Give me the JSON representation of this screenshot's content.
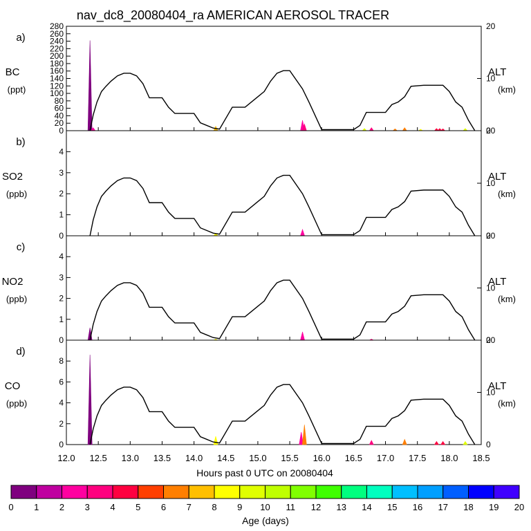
{
  "chart_data": {
    "type": "line",
    "title": "nav_dc8_20080404_ra AMERICAN AEROSOL TRACER",
    "xlabel": "Hours past 0 UTC on 20080404",
    "xlim": [
      12.0,
      18.5
    ],
    "x_ticks": [
      "12.0",
      "12.5",
      "13.0",
      "13.5",
      "14.0",
      "14.5",
      "15.0",
      "15.5",
      "16.0",
      "16.5",
      "17.0",
      "17.5",
      "18.0",
      "18.5"
    ],
    "altitude": {
      "label": "ALT",
      "unit": "(km)",
      "range": [
        0,
        20
      ],
      "ticks": [
        "0",
        "10",
        "20"
      ],
      "x": [
        12.37,
        12.42,
        12.48,
        12.55,
        12.62,
        12.7,
        12.8,
        12.9,
        13.0,
        13.1,
        13.2,
        13.3,
        13.5,
        13.6,
        13.7,
        14.0,
        14.1,
        14.2,
        14.3,
        14.4,
        14.6,
        14.7,
        14.8,
        15.0,
        15.1,
        15.2,
        15.3,
        15.4,
        15.5,
        15.7,
        15.8,
        16.0,
        16.5,
        16.6,
        16.7,
        16.8,
        17.0,
        17.1,
        17.2,
        17.3,
        17.4,
        17.6,
        17.7,
        17.9,
        18.0,
        18.1,
        18.2,
        18.3,
        18.4
      ],
      "y": [
        0,
        3,
        5.5,
        7.5,
        8.5,
        9.5,
        10.5,
        11,
        11,
        10.5,
        9,
        6.3,
        6.3,
        4.5,
        3.3,
        3.3,
        1.5,
        1,
        0.5,
        0.3,
        4.5,
        4.5,
        4.5,
        6.5,
        7.5,
        9.5,
        11,
        11.5,
        11.5,
        8,
        5.5,
        0.2,
        0.2,
        1,
        3.5,
        3.5,
        3.5,
        5,
        5.5,
        6.5,
        8.5,
        8.7,
        8.7,
        8.7,
        7.5,
        5.5,
        4.5,
        2,
        0
      ]
    },
    "panels": [
      {
        "id": "a)",
        "species": "BC",
        "unit": "(ppt)",
        "ylim": [
          0,
          280
        ],
        "yticks": [
          "0",
          "20",
          "40",
          "60",
          "80",
          "100",
          "120",
          "140",
          "160",
          "180",
          "200",
          "220",
          "240",
          "260",
          "280"
        ],
        "ytick_vals": [
          0,
          20,
          40,
          60,
          80,
          100,
          120,
          140,
          160,
          180,
          200,
          220,
          240,
          260,
          280
        ],
        "spikes": [
          {
            "x": 12.37,
            "value": 242,
            "age_days": 0
          },
          {
            "x": 12.42,
            "value": 8,
            "age_days": 2
          },
          {
            "x": 14.34,
            "value": 12,
            "age_days": 7
          },
          {
            "x": 15.7,
            "value": 28,
            "age_days": 2
          },
          {
            "x": 15.73,
            "value": 18,
            "age_days": 3
          },
          {
            "x": 16.67,
            "value": 6,
            "age_days": 9
          },
          {
            "x": 16.78,
            "value": 8,
            "age_days": 3
          },
          {
            "x": 17.15,
            "value": 5,
            "age_days": 6
          },
          {
            "x": 17.3,
            "value": 8,
            "age_days": 6
          },
          {
            "x": 17.55,
            "value": 4,
            "age_days": 8
          },
          {
            "x": 17.8,
            "value": 6,
            "age_days": 4
          },
          {
            "x": 17.85,
            "value": 6,
            "age_days": 4
          },
          {
            "x": 17.9,
            "value": 5,
            "age_days": 4
          },
          {
            "x": 18.25,
            "value": 6,
            "age_days": 9
          }
        ]
      },
      {
        "id": "b)",
        "species": "SO2",
        "unit": "(ppb)",
        "ylim": [
          0,
          5
        ],
        "yticks": [
          "0",
          "1",
          "2",
          "3",
          "4"
        ],
        "ytick_vals": [
          0,
          1,
          2,
          3,
          4
        ],
        "spikes": [
          {
            "x": 14.34,
            "value": 0.12,
            "age_days": 8
          },
          {
            "x": 15.7,
            "value": 0.3,
            "age_days": 2
          }
        ]
      },
      {
        "id": "c)",
        "species": "NO2",
        "unit": "(ppb)",
        "ylim": [
          0,
          5
        ],
        "yticks": [
          "0",
          "1",
          "2",
          "3",
          "4"
        ],
        "ytick_vals": [
          0,
          1,
          2,
          3,
          4
        ],
        "spikes": [
          {
            "x": 12.37,
            "value": 0.6,
            "age_days": 0
          },
          {
            "x": 14.34,
            "value": 0.05,
            "age_days": 8
          },
          {
            "x": 15.7,
            "value": 0.4,
            "age_days": 2
          },
          {
            "x": 16.78,
            "value": 0.05,
            "age_days": 3
          }
        ]
      },
      {
        "id": "d)",
        "species": "CO",
        "unit": "(ppb)",
        "ylim": [
          0,
          10
        ],
        "yticks": [
          "0",
          "2",
          "4",
          "6",
          "8"
        ],
        "ytick_vals": [
          0,
          2,
          4,
          6,
          8
        ],
        "spikes": [
          {
            "x": 12.37,
            "value": 8.6,
            "age_days": 0
          },
          {
            "x": 14.34,
            "value": 0.8,
            "age_days": 8
          },
          {
            "x": 15.68,
            "value": 1.2,
            "age_days": 2
          },
          {
            "x": 15.73,
            "value": 1.9,
            "age_days": 6
          },
          {
            "x": 16.78,
            "value": 0.4,
            "age_days": 3
          },
          {
            "x": 17.3,
            "value": 0.5,
            "age_days": 6
          },
          {
            "x": 17.8,
            "value": 0.3,
            "age_days": 4
          },
          {
            "x": 17.9,
            "value": 0.3,
            "age_days": 4
          },
          {
            "x": 18.25,
            "value": 0.3,
            "age_days": 9
          }
        ]
      }
    ],
    "colorbar": {
      "label": "Age (days)",
      "ticks": [
        "0",
        "1",
        "2",
        "3",
        "4",
        "5",
        "6",
        "7",
        "8",
        "9",
        "10",
        "11",
        "12",
        "13",
        "14",
        "15",
        "16",
        "17",
        "18",
        "19",
        "20"
      ],
      "colors": [
        "#7f007f",
        "#bf00a0",
        "#ff00a0",
        "#ff007f",
        "#ff0040",
        "#ff3f00",
        "#ff7f00",
        "#ffbf00",
        "#ffff00",
        "#e0ff00",
        "#bfff00",
        "#80ff00",
        "#3fff00",
        "#00ff7f",
        "#00ffbf",
        "#00bfff",
        "#009fff",
        "#005fff",
        "#0000ff",
        "#3f00ff"
      ]
    }
  }
}
